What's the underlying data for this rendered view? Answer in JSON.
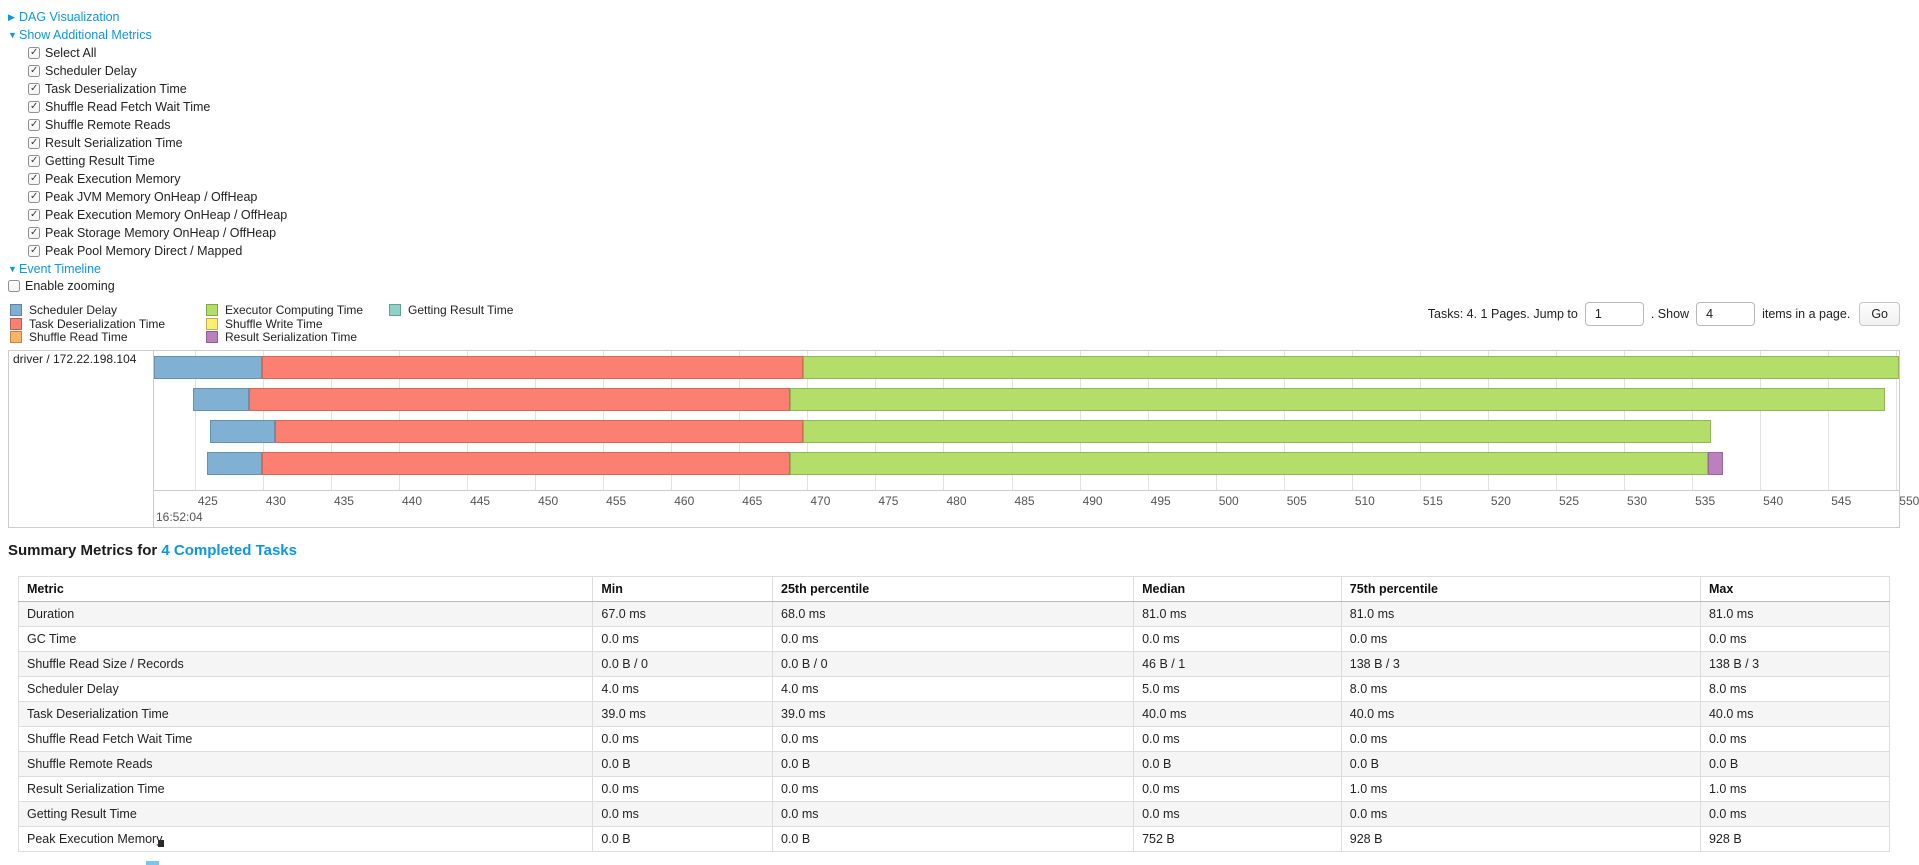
{
  "colors": {
    "link": "#0E96E0",
    "scheduler_delay": "#80B1D3",
    "task_deserialization_time": "#FB8072",
    "shuffle_read_time": "#FDB462",
    "executor_computing_time": "#B3DE69",
    "shuffle_write_time": "#FFED6F",
    "result_serialization_time": "#BC80BD",
    "getting_result_time": "#8DD3C7"
  },
  "controls": {
    "dag": {
      "arrow": "▶",
      "label": "DAG Visualization"
    },
    "metrics_toggle": {
      "arrow": "▼",
      "label": "Show Additional Metrics"
    },
    "metric_checkboxes": [
      "Select All",
      "Scheduler Delay",
      "Task Deserialization Time",
      "Shuffle Read Fetch Wait Time",
      "Shuffle Remote Reads",
      "Result Serialization Time",
      "Getting Result Time",
      "Peak Execution Memory",
      "Peak JVM Memory OnHeap / OffHeap",
      "Peak Execution Memory OnHeap / OffHeap",
      "Peak Storage Memory OnHeap / OffHeap",
      "Peak Pool Memory Direct / Mapped"
    ],
    "event_timeline": {
      "arrow": "▼",
      "label": "Event Timeline"
    },
    "enable_zooming": {
      "label": "Enable zooming",
      "checked": false
    }
  },
  "legend": {
    "columns": [
      [
        {
          "label": "Scheduler Delay",
          "color": "scheduler_delay"
        },
        {
          "label": "Task Deserialization Time",
          "color": "task_deserialization_time"
        },
        {
          "label": "Shuffle Read Time",
          "color": "shuffle_read_time"
        }
      ],
      [
        {
          "label": "Executor Computing Time",
          "color": "executor_computing_time"
        },
        {
          "label": "Shuffle Write Time",
          "color": "shuffle_write_time"
        },
        {
          "label": "Result Serialization Time",
          "color": "result_serialization_time"
        }
      ],
      [
        {
          "label": "Getting Result Time",
          "color": "getting_result_time"
        }
      ]
    ]
  },
  "pagination": {
    "tasks_text": "Tasks: 4. 1 Pages. Jump to",
    "jump_value": "1",
    "show_label": ". Show",
    "show_value": "4",
    "items_text": "items in a page.",
    "go_label": "Go"
  },
  "chart_data": {
    "type": "timeline-stacked-bar",
    "row_label": "driver / 172.22.198.104",
    "start_time_label": "16:52:04",
    "axis": {
      "min": 422.0,
      "max": 550.2,
      "tick_start": 425,
      "tick_end": 550,
      "tick_step": 5,
      "unit": "ms"
    },
    "tasks": [
      {
        "segments": [
          {
            "name": "scheduler_delay",
            "start": 422.0,
            "end": 429.9
          },
          {
            "name": "task_deserialization_time",
            "start": 429.9,
            "end": 469.7
          },
          {
            "name": "executor_computing_time",
            "start": 469.7,
            "end": 550.2
          }
        ]
      },
      {
        "segments": [
          {
            "name": "scheduler_delay",
            "start": 424.9,
            "end": 429.0
          },
          {
            "name": "task_deserialization_time",
            "start": 429.0,
            "end": 468.7
          },
          {
            "name": "executor_computing_time",
            "start": 468.7,
            "end": 549.2
          }
        ]
      },
      {
        "segments": [
          {
            "name": "scheduler_delay",
            "start": 426.1,
            "end": 430.9
          },
          {
            "name": "task_deserialization_time",
            "start": 430.9,
            "end": 469.7
          },
          {
            "name": "executor_computing_time",
            "start": 469.7,
            "end": 536.4
          }
        ]
      },
      {
        "segments": [
          {
            "name": "scheduler_delay",
            "start": 425.9,
            "end": 429.9
          },
          {
            "name": "task_deserialization_time",
            "start": 429.9,
            "end": 468.7
          },
          {
            "name": "executor_computing_time",
            "start": 468.7,
            "end": 536.2
          },
          {
            "name": "result_serialization_time",
            "start": 536.2,
            "end": 537.3
          }
        ]
      }
    ]
  },
  "summary": {
    "title_prefix": "Summary Metrics for ",
    "title_link": "4 Completed Tasks"
  },
  "table": {
    "headers": [
      "Metric",
      "Min",
      "25th percentile",
      "Median",
      "75th percentile",
      "Max"
    ],
    "col_widths_pct": [
      30.7,
      9.6,
      19.3,
      11.1,
      19.2,
      10.1
    ],
    "rows": [
      [
        "Duration",
        "67.0 ms",
        "68.0 ms",
        "81.0 ms",
        "81.0 ms",
        "81.0 ms"
      ],
      [
        "GC Time",
        "0.0 ms",
        "0.0 ms",
        "0.0 ms",
        "0.0 ms",
        "0.0 ms"
      ],
      [
        "Shuffle Read Size / Records",
        "0.0 B / 0",
        "0.0 B / 0",
        "46 B / 1",
        "138 B / 3",
        "138 B / 3"
      ],
      [
        "Scheduler Delay",
        "4.0 ms",
        "4.0 ms",
        "5.0 ms",
        "8.0 ms",
        "8.0 ms"
      ],
      [
        "Task Deserialization Time",
        "39.0 ms",
        "39.0 ms",
        "40.0 ms",
        "40.0 ms",
        "40.0 ms"
      ],
      [
        "Shuffle Read Fetch Wait Time",
        "0.0 ms",
        "0.0 ms",
        "0.0 ms",
        "0.0 ms",
        "0.0 ms"
      ],
      [
        "Shuffle Remote Reads",
        "0.0 B",
        "0.0 B",
        "0.0 B",
        "0.0 B",
        "0.0 B"
      ],
      [
        "Result Serialization Time",
        "0.0 ms",
        "0.0 ms",
        "0.0 ms",
        "1.0 ms",
        "1.0 ms"
      ],
      [
        "Getting Result Time",
        "0.0 ms",
        "0.0 ms",
        "0.0 ms",
        "0.0 ms",
        "0.0 ms"
      ],
      [
        "Peak Execution Memory",
        "0.0 B",
        "0.0 B",
        "752 B",
        "928 B",
        "928 B"
      ]
    ]
  }
}
